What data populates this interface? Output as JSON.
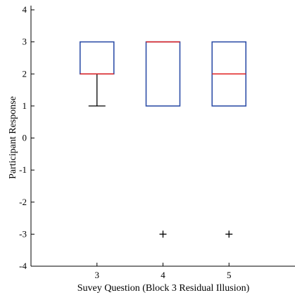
{
  "chart_data": {
    "type": "box",
    "xlabel": "Suvey Question (Block 3 Residual Illusion)",
    "ylabel": "Participant Response",
    "ylim": [
      -4,
      4
    ],
    "yticks": [
      -4,
      -3,
      -2,
      -1,
      0,
      1,
      2,
      3,
      4
    ],
    "categories": [
      "3",
      "4",
      "5"
    ],
    "boxes": [
      {
        "category": "3",
        "q1": 2,
        "median": 2,
        "q3": 3,
        "whisker_low": 1,
        "whisker_high": 3,
        "outliers": []
      },
      {
        "category": "4",
        "q1": 1,
        "median": 3,
        "q3": 3,
        "whisker_low": 1,
        "whisker_high": 3,
        "outliers": [
          -3
        ]
      },
      {
        "category": "5",
        "q1": 1,
        "median": 2,
        "q3": 3,
        "whisker_low": 1,
        "whisker_high": 3,
        "outliers": [
          -3
        ]
      }
    ],
    "grid": false,
    "colors": {
      "box": "#3050a8",
      "median": "#e02020",
      "whisker": "#000000",
      "outlier": "#000000"
    }
  }
}
